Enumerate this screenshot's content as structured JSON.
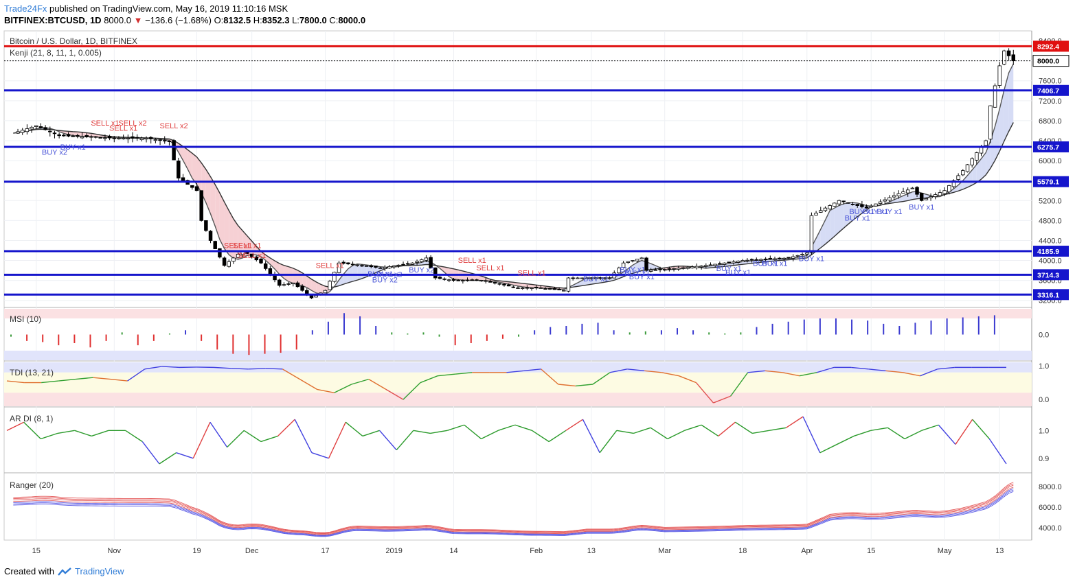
{
  "header": {
    "author": "Trade24Fx",
    "published_text": "published on TradingView.com, May 16, 2019 11:10:16 MSK"
  },
  "symbol_line": {
    "symbol": "BITFINEX:BTCUSD, 1D",
    "last": "8000.0",
    "change": "−136.6 (−1.68%)",
    "o_label": "O:",
    "o": "8132.5",
    "h_label": "H:",
    "h": "8352.3",
    "l_label": "L:",
    "l": "7800.0",
    "c_label": "C:",
    "c": "8000.0"
  },
  "footer": {
    "created_with": "Created with",
    "brand": "TradingView"
  },
  "colors": {
    "level_line": "#1515cc",
    "resistance_line": "#e01010",
    "sell_text": "#e04040",
    "buy_text": "#4a55d8",
    "kenji_bull_fill": "#d6dcf5",
    "kenji_bear_fill": "#f6d0d4",
    "msi_pos": "#3a3ad0",
    "msi_neg": "#e03030",
    "ranger_red": "#e04040",
    "ranger_blue": "#4040e0"
  },
  "chart_data": [
    {
      "type": "candlestick",
      "title": "Bitcoin / U.S. Dollar, 1D, BITFINEX",
      "indicator_label": "Kenji (21, 8, 11, 1, 0.005)",
      "ylim": [
        3100,
        8600
      ],
      "y_ticks": [
        3200,
        3600,
        4000,
        4400,
        4800,
        5200,
        5600,
        6000,
        6400,
        6800,
        7200,
        7600,
        8000,
        8400
      ],
      "x_tick_labels": [
        "15",
        "Nov",
        "19",
        "Dec",
        "17",
        "2019",
        "14",
        "Feb",
        "13",
        "Mar",
        "18",
        "Apr",
        "15",
        "May",
        "13"
      ],
      "x_tick_dates": [
        "2018-10-15",
        "2018-11-01",
        "2018-11-19",
        "2018-12-01",
        "2018-12-17",
        "2019-01-01",
        "2019-01-14",
        "2019-02-01",
        "2019-02-13",
        "2019-03-01",
        "2019-03-18",
        "2019-04-01",
        "2019-04-15",
        "2019-05-01",
        "2019-05-13"
      ],
      "horizontal_levels": [
        {
          "value": 8292.4,
          "label": "8292.4",
          "kind": "resistance"
        },
        {
          "value": 7406.7,
          "label": "7406.7",
          "kind": "level"
        },
        {
          "value": 6275.7,
          "label": "6275.7",
          "kind": "level"
        },
        {
          "value": 5579.1,
          "label": "5579.1",
          "kind": "level"
        },
        {
          "value": 4185.9,
          "label": "4185.9",
          "kind": "level"
        },
        {
          "value": 3714.3,
          "label": "3714.3",
          "kind": "level"
        },
        {
          "value": 3316.1,
          "label": "3316.1",
          "kind": "level"
        }
      ],
      "last_price": {
        "value": 8000.0,
        "label": "8000.0"
      },
      "price_path": [
        [
          "2018-10-10",
          6550
        ],
        [
          "2018-10-15",
          6700
        ],
        [
          "2018-10-20",
          6500
        ],
        [
          "2018-11-01",
          6450
        ],
        [
          "2018-11-08",
          6450
        ],
        [
          "2018-11-13",
          6380
        ],
        [
          "2018-11-15",
          5650
        ],
        [
          "2018-11-19",
          5400
        ],
        [
          "2018-11-20",
          4800
        ],
        [
          "2018-11-22",
          4400
        ],
        [
          "2018-11-25",
          3900
        ],
        [
          "2018-11-29",
          4200
        ],
        [
          "2018-12-03",
          3950
        ],
        [
          "2018-12-07",
          3500
        ],
        [
          "2018-12-10",
          3550
        ],
        [
          "2018-12-14",
          3250
        ],
        [
          "2018-12-17",
          3400
        ],
        [
          "2018-12-20",
          3950
        ],
        [
          "2018-12-25",
          3900
        ],
        [
          "2018-12-29",
          3850
        ],
        [
          "2019-01-05",
          3950
        ],
        [
          "2019-01-08",
          4050
        ],
        [
          "2019-01-10",
          3650
        ],
        [
          "2019-01-14",
          3600
        ],
        [
          "2019-01-20",
          3600
        ],
        [
          "2019-01-28",
          3450
        ],
        [
          "2019-02-01",
          3450
        ],
        [
          "2019-02-07",
          3400
        ],
        [
          "2019-02-08",
          3650
        ],
        [
          "2019-02-13",
          3650
        ],
        [
          "2019-02-17",
          3650
        ],
        [
          "2019-02-20",
          3950
        ],
        [
          "2019-02-24",
          4050
        ],
        [
          "2019-02-25",
          3800
        ],
        [
          "2019-03-01",
          3820
        ],
        [
          "2019-03-10",
          3900
        ],
        [
          "2019-03-18",
          4000
        ],
        [
          "2019-03-28",
          4050
        ],
        [
          "2019-04-01",
          4150
        ],
        [
          "2019-04-02",
          4900
        ],
        [
          "2019-04-08",
          5200
        ],
        [
          "2019-04-14",
          5050
        ],
        [
          "2019-04-20",
          5300
        ],
        [
          "2019-04-24",
          5450
        ],
        [
          "2019-04-26",
          5200
        ],
        [
          "2019-05-01",
          5400
        ],
        [
          "2019-05-05",
          5800
        ],
        [
          "2019-05-10",
          6400
        ],
        [
          "2019-05-11",
          7100
        ],
        [
          "2019-05-13",
          7900
        ],
        [
          "2019-05-14",
          8200
        ],
        [
          "2019-05-16",
          8000
        ]
      ],
      "signals": [
        {
          "text": "SELL x1",
          "date": "2018-10-30",
          "price": 6700,
          "side": "sell"
        },
        {
          "text": "SELL x1",
          "date": "2018-11-03",
          "price": 6600,
          "side": "sell"
        },
        {
          "text": "SELL x2",
          "date": "2018-11-05",
          "price": 6700,
          "side": "sell"
        },
        {
          "text": "SELL x2",
          "date": "2018-11-14",
          "price": 6650,
          "side": "sell"
        },
        {
          "text": "SELL x1",
          "date": "2018-11-28",
          "price": 4250,
          "side": "sell"
        },
        {
          "text": "SELL x1",
          "date": "2018-11-30",
          "price": 4250,
          "side": "sell"
        },
        {
          "text": "SELL x1",
          "date": "2018-12-01",
          "price": 4050,
          "side": "sell"
        },
        {
          "text": "SELL x1",
          "date": "2018-12-18",
          "price": 3850,
          "side": "sell"
        },
        {
          "text": "SELL x1",
          "date": "2019-01-18",
          "price": 3950,
          "side": "sell"
        },
        {
          "text": "SELL x1",
          "date": "2019-01-22",
          "price": 3800,
          "side": "sell"
        },
        {
          "text": "SELL x1",
          "date": "2019-01-31",
          "price": 3700,
          "side": "sell"
        },
        {
          "text": "BUY x1",
          "date": "2018-10-23",
          "price": 6220,
          "side": "buy"
        },
        {
          "text": "BUY x2",
          "date": "2018-10-19",
          "price": 6120,
          "side": "buy"
        },
        {
          "text": "BUY x1",
          "date": "2018-12-29",
          "price": 3680,
          "side": "buy"
        },
        {
          "text": "BUY x2",
          "date": "2018-12-31",
          "price": 3670,
          "side": "buy"
        },
        {
          "text": "BUY x2",
          "date": "2018-12-30",
          "price": 3560,
          "side": "buy"
        },
        {
          "text": "BUY x2",
          "date": "2019-01-07",
          "price": 3760,
          "side": "buy"
        },
        {
          "text": "BUY x1",
          "date": "2019-02-14",
          "price": 3580,
          "side": "buy"
        },
        {
          "text": "BUY x1",
          "date": "2019-02-23",
          "price": 3700,
          "side": "buy"
        },
        {
          "text": "BUY x1",
          "date": "2019-02-22",
          "price": 3770,
          "side": "buy"
        },
        {
          "text": "BUY x1",
          "date": "2019-02-24",
          "price": 3620,
          "side": "buy"
        },
        {
          "text": "BUY x1",
          "date": "2019-03-15",
          "price": 3790,
          "side": "buy"
        },
        {
          "text": "BUY x1",
          "date": "2019-03-17",
          "price": 3710,
          "side": "buy"
        },
        {
          "text": "BUY x1",
          "date": "2019-03-23",
          "price": 3890,
          "side": "buy"
        },
        {
          "text": "BUY x1",
          "date": "2019-03-25",
          "price": 3890,
          "side": "buy"
        },
        {
          "text": "BUY x1",
          "date": "2019-04-02",
          "price": 3990,
          "side": "buy"
        },
        {
          "text": "BUY x1",
          "date": "2019-04-12",
          "price": 4800,
          "side": "buy"
        },
        {
          "text": "BUY x1",
          "date": "2019-04-13",
          "price": 4930,
          "side": "buy"
        },
        {
          "text": "BUY x1",
          "date": "2019-04-16",
          "price": 4930,
          "side": "buy"
        },
        {
          "text": "BUY x1",
          "date": "2019-04-19",
          "price": 4930,
          "side": "buy"
        },
        {
          "text": "BUY x1",
          "date": "2019-04-26",
          "price": 5020,
          "side": "buy"
        }
      ]
    },
    {
      "type": "bar",
      "title": "MSI (10)",
      "ylim": [
        -1.2,
        1.2
      ],
      "y_ticks": [
        0.0
      ],
      "y_tick_labels": [
        "0.0"
      ],
      "levels": [
        0.75,
        -0.75
      ],
      "values": [
        -0.1,
        -0.3,
        -0.35,
        -0.5,
        -0.4,
        -0.6,
        -0.3,
        0.1,
        -0.5,
        -0.3,
        0.05,
        0.2,
        -0.3,
        -0.7,
        -0.9,
        -0.95,
        -0.9,
        -0.85,
        -0.7,
        0.2,
        0.6,
        1.0,
        0.85,
        0.4,
        0.1,
        0.05,
        0.1,
        -0.1,
        -0.5,
        -0.4,
        -0.3,
        -0.2,
        -0.1,
        0.2,
        0.35,
        0.4,
        0.5,
        0.55,
        0.2,
        0.1,
        0.15,
        0.2,
        0.3,
        0.2,
        0.1,
        0.05,
        0.1,
        0.35,
        0.5,
        0.6,
        0.7,
        0.75,
        0.75,
        0.7,
        0.65,
        0.5,
        0.4,
        0.55,
        0.65,
        0.75,
        0.8,
        0.85,
        0.9
      ]
    },
    {
      "type": "line",
      "title": "TDI (13, 21)",
      "ylim": [
        -0.2,
        1.1
      ],
      "y_ticks": [
        0.0,
        1.0
      ],
      "y_tick_labels": [
        "0.0",
        "1.0"
      ],
      "bands": [
        0.8,
        0.2
      ],
      "values": [
        0.55,
        0.5,
        0.5,
        0.55,
        0.6,
        0.65,
        0.6,
        0.55,
        0.9,
        0.98,
        0.95,
        0.96,
        0.95,
        0.92,
        0.9,
        0.92,
        0.9,
        0.6,
        0.3,
        0.2,
        0.45,
        0.6,
        0.3,
        0.0,
        0.5,
        0.7,
        0.75,
        0.8,
        0.8,
        0.8,
        0.85,
        0.9,
        0.45,
        0.4,
        0.45,
        0.8,
        0.9,
        0.85,
        0.8,
        0.7,
        0.5,
        -0.1,
        0.1,
        0.8,
        0.85,
        0.8,
        0.7,
        0.8,
        0.95,
        0.95,
        0.9,
        0.85,
        0.8,
        0.7,
        0.9,
        0.95,
        0.95,
        0.95,
        0.95
      ]
    },
    {
      "type": "line",
      "title": "AR DI (8, 1)",
      "ylim": [
        0.85,
        1.08
      ],
      "y_ticks": [
        0.9,
        1.0
      ],
      "y_tick_labels": [
        "0.9",
        "1.0"
      ],
      "values": [
        1.0,
        1.03,
        0.97,
        0.99,
        1.0,
        0.98,
        1.0,
        1.0,
        0.96,
        0.88,
        0.92,
        0.9,
        1.03,
        0.94,
        1.0,
        0.96,
        0.98,
        1.04,
        0.92,
        0.9,
        1.03,
        0.98,
        1.0,
        0.93,
        1.0,
        0.99,
        1.0,
        1.02,
        0.97,
        1.0,
        1.02,
        1.0,
        0.96,
        1.0,
        1.04,
        0.92,
        1.0,
        0.99,
        1.01,
        0.97,
        1.0,
        1.02,
        0.98,
        1.03,
        0.99,
        1.0,
        1.01,
        1.05,
        0.92,
        0.95,
        0.98,
        1.0,
        1.01,
        0.97,
        1.0,
        1.02,
        0.95,
        1.04,
        0.97,
        0.88
      ]
    },
    {
      "type": "line",
      "title": "Ranger (20)",
      "ylim": [
        2800,
        9200
      ],
      "y_ticks": [
        4000,
        6000,
        8000
      ],
      "y_tick_labels": [
        "4000.0",
        "6000.0",
        "8000.0"
      ]
    }
  ]
}
